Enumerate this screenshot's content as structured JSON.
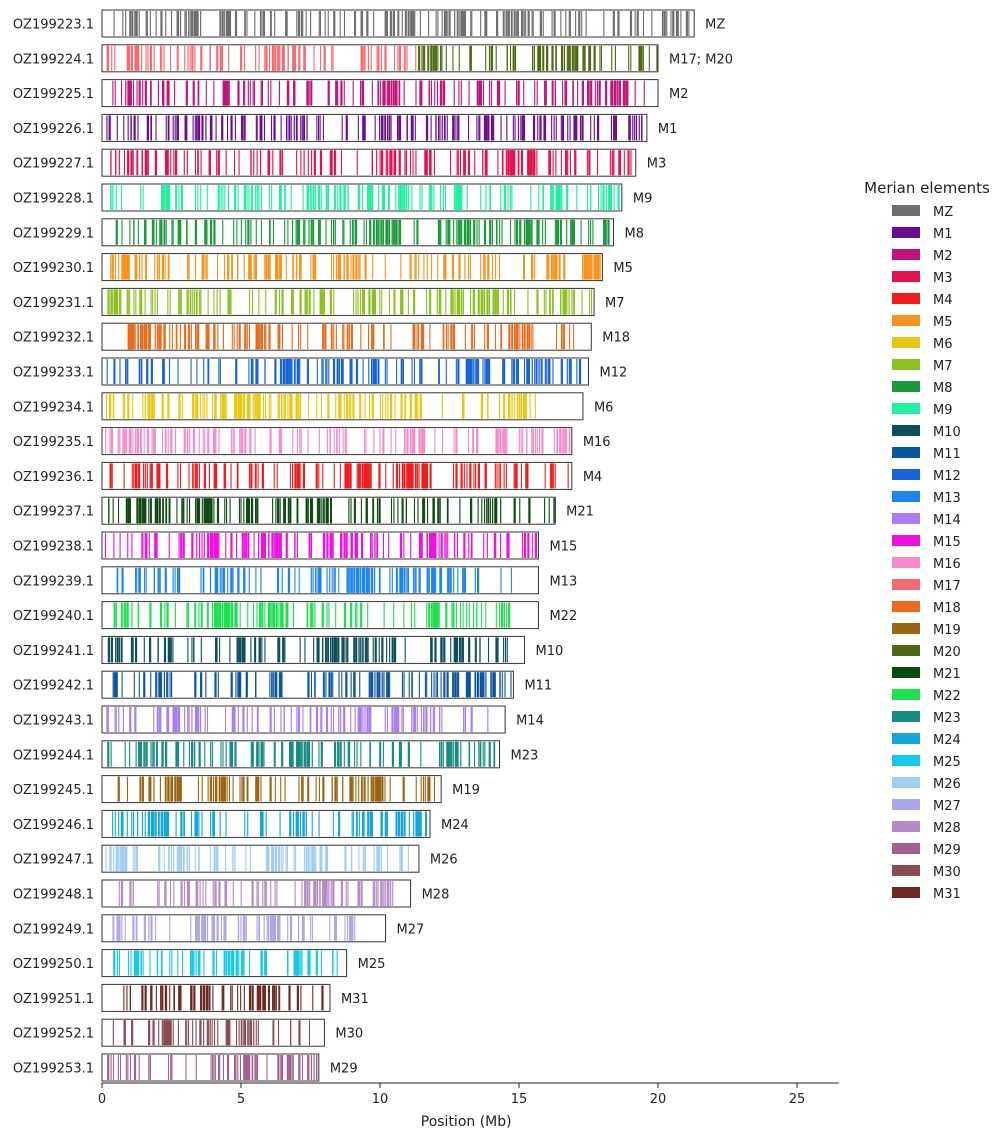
{
  "chart_data": {
    "type": "chromosome-painting",
    "xlabel": "Position (Mb)",
    "xlim": [
      0,
      26.5
    ],
    "xticks": [
      0,
      5,
      10,
      15,
      20,
      25
    ],
    "legend": {
      "title": "Merian elements",
      "placement": "right",
      "items": [
        {
          "name": "MZ",
          "color": "#6e6e6e"
        },
        {
          "name": "M1",
          "color": "#6a0d91"
        },
        {
          "name": "M2",
          "color": "#c0147a"
        },
        {
          "name": "M3",
          "color": "#e6114f"
        },
        {
          "name": "M4",
          "color": "#f31c1c"
        },
        {
          "name": "M5",
          "color": "#f7941d"
        },
        {
          "name": "M6",
          "color": "#e8c812"
        },
        {
          "name": "M7",
          "color": "#8cc21f"
        },
        {
          "name": "M8",
          "color": "#1a9a3a"
        },
        {
          "name": "M9",
          "color": "#20f0a0"
        },
        {
          "name": "M10",
          "color": "#0d4f5a"
        },
        {
          "name": "M11",
          "color": "#0a54a0"
        },
        {
          "name": "M12",
          "color": "#1664d8"
        },
        {
          "name": "M13",
          "color": "#1b84f0"
        },
        {
          "name": "M14",
          "color": "#a97ef2"
        },
        {
          "name": "M15",
          "color": "#f010e0"
        },
        {
          "name": "M16",
          "color": "#f78ac8"
        },
        {
          "name": "M17",
          "color": "#f86a72"
        },
        {
          "name": "M18",
          "color": "#ec6a1c"
        },
        {
          "name": "M19",
          "color": "#9a6510"
        },
        {
          "name": "M20",
          "color": "#4d6a12"
        },
        {
          "name": "M21",
          "color": "#0d4a12"
        },
        {
          "name": "M22",
          "color": "#1ee04f"
        },
        {
          "name": "M23",
          "color": "#168c82"
        },
        {
          "name": "M24",
          "color": "#12a6dc"
        },
        {
          "name": "M25",
          "color": "#14c8ea"
        },
        {
          "name": "M26",
          "color": "#a2cdf2"
        },
        {
          "name": "M27",
          "color": "#aaa8e8"
        },
        {
          "name": "M28",
          "color": "#b48ac8"
        },
        {
          "name": "M29",
          "color": "#a0628e"
        },
        {
          "name": "M30",
          "color": "#8c4a52"
        },
        {
          "name": "M31",
          "color": "#6e2a22"
        }
      ]
    },
    "chromosomes": [
      {
        "id": "OZ199223.1",
        "length": 21.3,
        "element": "MZ",
        "segments": [
          [
            0.2,
            21.2,
            "MZ"
          ]
        ]
      },
      {
        "id": "OZ199224.1",
        "length": 20.0,
        "element": "M17; M20",
        "segments": [
          [
            0.1,
            11.3,
            "M17"
          ],
          [
            11.3,
            20.0,
            "M20"
          ]
        ]
      },
      {
        "id": "OZ199225.1",
        "length": 20.0,
        "element": "M2",
        "segments": [
          [
            0.1,
            19.6,
            "M2"
          ]
        ]
      },
      {
        "id": "OZ199226.1",
        "length": 19.6,
        "element": "M1",
        "segments": [
          [
            0.1,
            19.4,
            "M1"
          ]
        ]
      },
      {
        "id": "OZ199227.1",
        "length": 19.2,
        "element": "M3",
        "segments": [
          [
            0.1,
            19.1,
            "M3"
          ]
        ]
      },
      {
        "id": "OZ199228.1",
        "length": 18.7,
        "element": "M9",
        "segments": [
          [
            0.3,
            18.6,
            "M9"
          ]
        ]
      },
      {
        "id": "OZ199229.1",
        "length": 18.4,
        "element": "M8",
        "segments": [
          [
            0.1,
            18.3,
            "M8"
          ]
        ]
      },
      {
        "id": "OZ199230.1",
        "length": 18.0,
        "element": "M5",
        "segments": [
          [
            0.1,
            17.9,
            "M5"
          ]
        ]
      },
      {
        "id": "OZ199231.1",
        "length": 17.7,
        "element": "M7",
        "segments": [
          [
            0.1,
            17.6,
            "M7"
          ]
        ]
      },
      {
        "id": "OZ199232.1",
        "length": 17.6,
        "element": "M18",
        "segments": [
          [
            0.6,
            17.5,
            "M18"
          ]
        ]
      },
      {
        "id": "OZ199233.1",
        "length": 17.5,
        "element": "M12",
        "segments": [
          [
            0.1,
            17.4,
            "M12"
          ]
        ]
      },
      {
        "id": "OZ199234.1",
        "length": 17.3,
        "element": "M6",
        "segments": [
          [
            0.1,
            15.6,
            "M6"
          ]
        ]
      },
      {
        "id": "OZ199235.1",
        "length": 16.9,
        "element": "M16",
        "segments": [
          [
            0.1,
            16.8,
            "M16"
          ]
        ]
      },
      {
        "id": "OZ199236.1",
        "length": 16.9,
        "element": "M4",
        "segments": [
          [
            0.1,
            16.8,
            "M4"
          ]
        ]
      },
      {
        "id": "OZ199237.1",
        "length": 16.3,
        "element": "M21",
        "segments": [
          [
            0.1,
            16.3,
            "M21"
          ]
        ]
      },
      {
        "id": "OZ199238.1",
        "length": 15.7,
        "element": "M15",
        "segments": [
          [
            0.1,
            15.6,
            "M15"
          ]
        ]
      },
      {
        "id": "OZ199239.1",
        "length": 15.7,
        "element": "M13",
        "segments": [
          [
            0.1,
            15.0,
            "M13"
          ]
        ]
      },
      {
        "id": "OZ199240.1",
        "length": 15.7,
        "element": "M22",
        "segments": [
          [
            0.1,
            14.7,
            "M22"
          ]
        ]
      },
      {
        "id": "OZ199241.1",
        "length": 15.2,
        "element": "M10",
        "segments": [
          [
            0.2,
            15.1,
            "M10"
          ]
        ]
      },
      {
        "id": "OZ199242.1",
        "length": 14.8,
        "element": "M11",
        "segments": [
          [
            0.2,
            14.7,
            "M11"
          ]
        ]
      },
      {
        "id": "OZ199243.1",
        "length": 14.5,
        "element": "M14",
        "segments": [
          [
            0.1,
            14.0,
            "M14"
          ]
        ]
      },
      {
        "id": "OZ199244.1",
        "length": 14.3,
        "element": "M23",
        "segments": [
          [
            0.1,
            14.2,
            "M23"
          ]
        ]
      },
      {
        "id": "OZ199245.1",
        "length": 12.2,
        "element": "M19",
        "segments": [
          [
            0.1,
            12.0,
            "M19"
          ]
        ]
      },
      {
        "id": "OZ199246.1",
        "length": 11.8,
        "element": "M24",
        "segments": [
          [
            0.1,
            11.7,
            "M24"
          ]
        ]
      },
      {
        "id": "OZ199247.1",
        "length": 11.4,
        "element": "M26",
        "segments": [
          [
            0.1,
            11.3,
            "M26"
          ]
        ]
      },
      {
        "id": "OZ199248.1",
        "length": 11.1,
        "element": "M28",
        "segments": [
          [
            0.5,
            10.8,
            "M28"
          ]
        ]
      },
      {
        "id": "OZ199249.1",
        "length": 10.2,
        "element": "M27",
        "segments": [
          [
            0.3,
            9.2,
            "M27"
          ]
        ]
      },
      {
        "id": "OZ199250.1",
        "length": 8.8,
        "element": "M25",
        "segments": [
          [
            0.1,
            8.6,
            "M25"
          ]
        ]
      },
      {
        "id": "OZ199251.1",
        "length": 8.2,
        "element": "M31",
        "segments": [
          [
            0.2,
            8.1,
            "M31"
          ]
        ]
      },
      {
        "id": "OZ199252.1",
        "length": 8.0,
        "element": "M30",
        "segments": [
          [
            0.3,
            7.5,
            "M30"
          ]
        ]
      },
      {
        "id": "OZ199253.1",
        "length": 7.8,
        "element": "M29",
        "segments": [
          [
            0.1,
            7.7,
            "M29"
          ]
        ]
      }
    ]
  }
}
